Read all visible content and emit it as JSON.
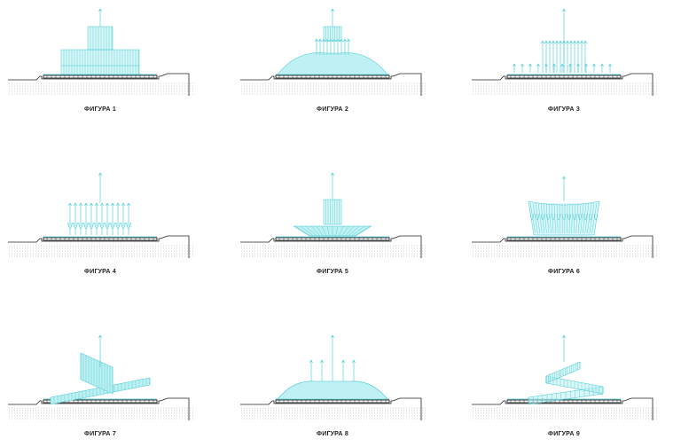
{
  "colors": {
    "water": "#3ec9d2",
    "water_fill": "#bff0f3",
    "ground_line": "#222222",
    "soil_dots": "#b5b5b5",
    "label": "#222222"
  },
  "figures": [
    {
      "label": "ФИГУРА 1",
      "pattern": "tiered-block"
    },
    {
      "label": "ФИГУРА 2",
      "pattern": "dome-with-jets"
    },
    {
      "label": "ФИГУРА 3",
      "pattern": "fan-of-jets"
    },
    {
      "label": "ФИГУРА 4",
      "pattern": "jet-row"
    },
    {
      "label": "ФИГУРА 5",
      "pattern": "tower-and-ring"
    },
    {
      "label": "ФИГУРА 6",
      "pattern": "curtain"
    },
    {
      "label": "ФИГУРА 7",
      "pattern": "crossing-planes"
    },
    {
      "label": "ФИГУРА 8",
      "pattern": "dome-with-spikes"
    },
    {
      "label": "ФИГУРА 9",
      "pattern": "spiral"
    }
  ]
}
